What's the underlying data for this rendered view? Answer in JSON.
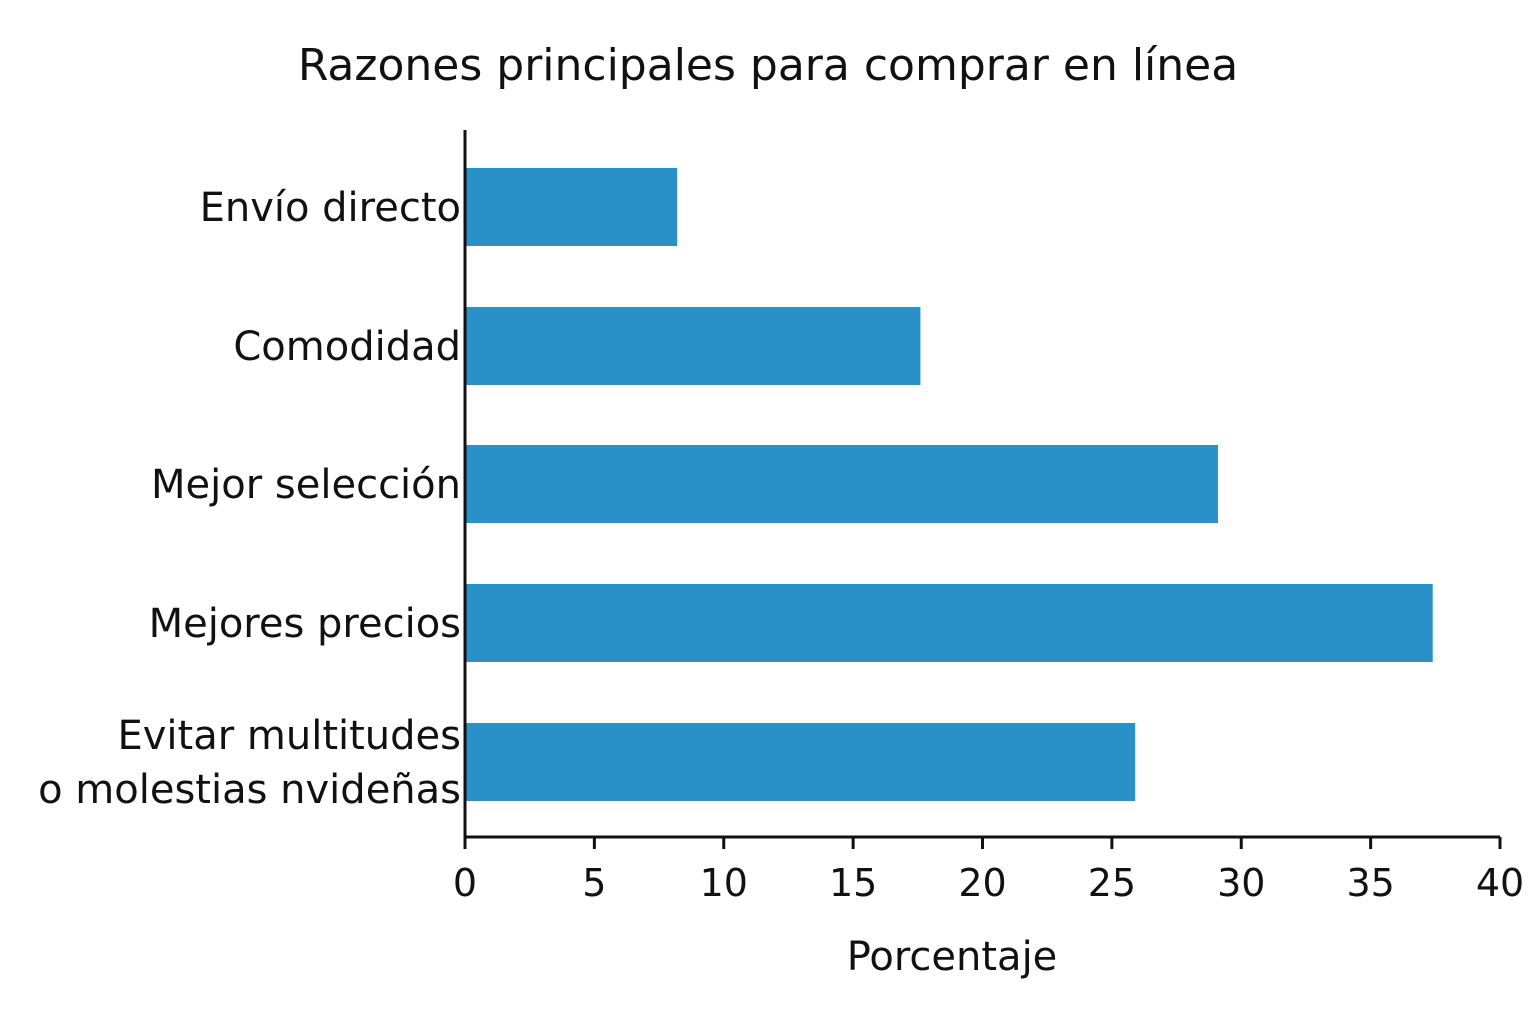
{
  "chart_data": {
    "type": "bar",
    "orientation": "horizontal",
    "title": "Razones principales para comprar en línea",
    "xlabel": "Porcentaje",
    "ylabel": "",
    "xlim": [
      0,
      40
    ],
    "xticks": [
      "0",
      "5",
      "10",
      "15",
      "20",
      "25",
      "30",
      "35",
      "40"
    ],
    "categories": [
      [
        "Envío directo"
      ],
      [
        "Comodidad"
      ],
      [
        "Mejor selección"
      ],
      [
        "Mejores precios"
      ],
      [
        "Evitar multitudes",
        "o molestias nvideñas"
      ]
    ],
    "values": [
      8.2,
      17.6,
      29.1,
      37.4,
      25.9
    ],
    "bar_color": "#2990C8",
    "grid": false,
    "legend": "none"
  }
}
